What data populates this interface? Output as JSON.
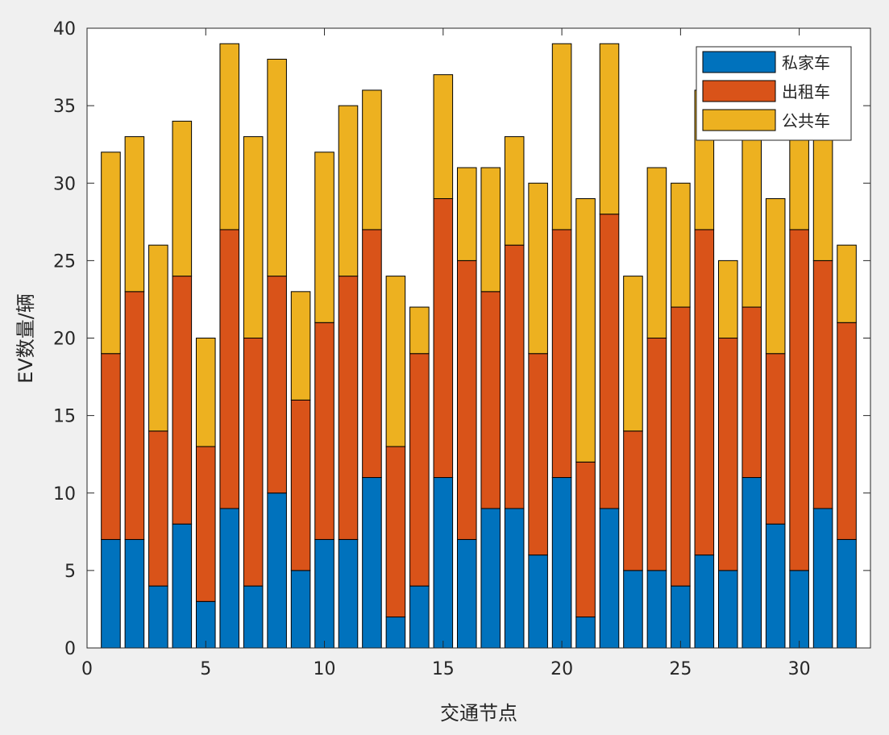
{
  "chart_data": {
    "type": "bar",
    "stacked": true,
    "xlabel": "交通节点",
    "ylabel": "EV数量/辆",
    "xlim": [
      0,
      33
    ],
    "ylim": [
      0,
      40
    ],
    "xticks": [
      0,
      5,
      10,
      15,
      20,
      25,
      30
    ],
    "yticks": [
      0,
      5,
      10,
      15,
      20,
      25,
      30,
      35,
      40
    ],
    "grid": false,
    "legend_position": "top-right",
    "categories": [
      1,
      2,
      3,
      4,
      5,
      6,
      7,
      8,
      9,
      10,
      11,
      12,
      13,
      14,
      15,
      16,
      17,
      18,
      19,
      20,
      21,
      22,
      23,
      24,
      25,
      26,
      27,
      28,
      29,
      30,
      31,
      32
    ],
    "series": [
      {
        "name": "私家车",
        "color": "#0072bd",
        "values": [
          7,
          7,
          4,
          8,
          3,
          9,
          4,
          10,
          5,
          7,
          7,
          11,
          2,
          4,
          11,
          7,
          9,
          9,
          6,
          11,
          2,
          9,
          5,
          5,
          4,
          6,
          5,
          11,
          8,
          5,
          9,
          7
        ]
      },
      {
        "name": "出租车",
        "color": "#d95319",
        "values": [
          12,
          16,
          10,
          16,
          10,
          18,
          16,
          14,
          11,
          14,
          17,
          16,
          11,
          15,
          18,
          18,
          14,
          17,
          13,
          16,
          10,
          19,
          9,
          15,
          18,
          21,
          15,
          11,
          11,
          22,
          16,
          14
        ]
      },
      {
        "name": "公共车",
        "color": "#edb120",
        "values": [
          13,
          10,
          12,
          10,
          7,
          12,
          13,
          14,
          7,
          11,
          11,
          9,
          11,
          3,
          8,
          6,
          8,
          7,
          11,
          12,
          17,
          11,
          10,
          11,
          8,
          9,
          5,
          15,
          10,
          6,
          8,
          5
        ]
      }
    ]
  }
}
